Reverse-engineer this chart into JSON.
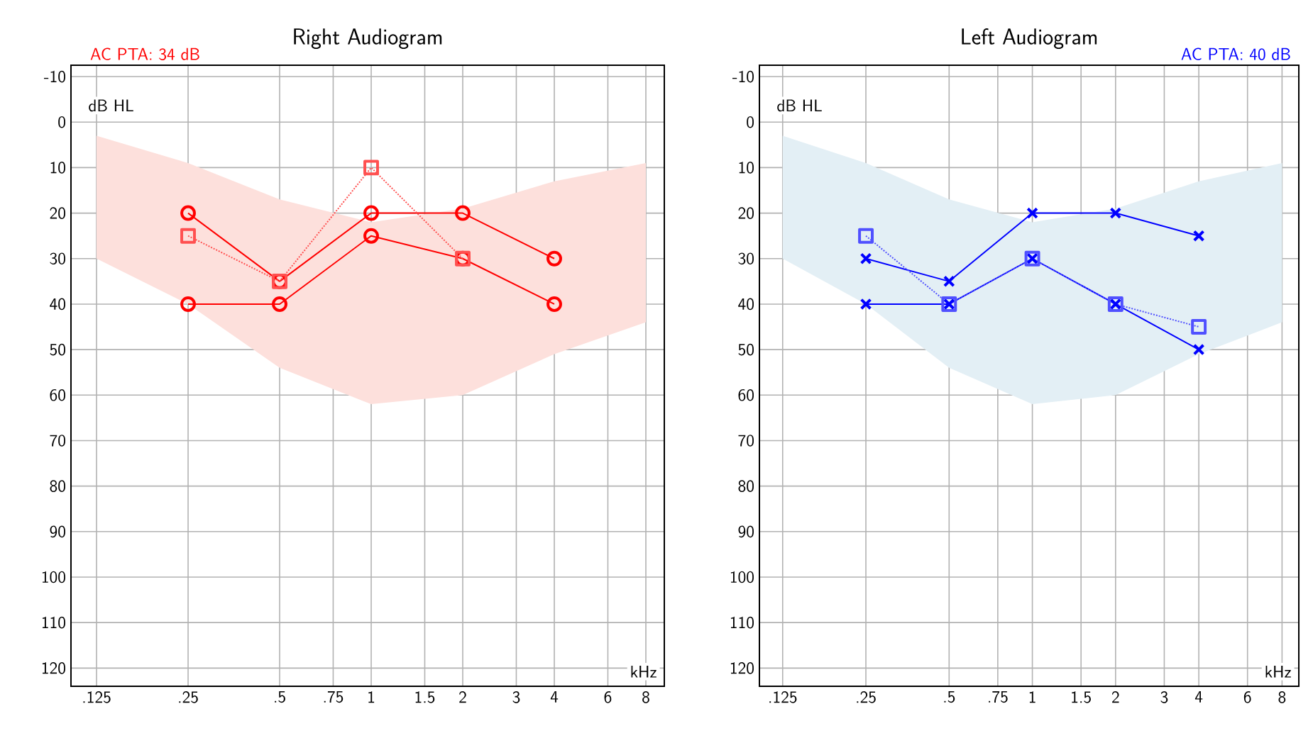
{
  "chart_data": [
    {
      "type": "line",
      "title": "Right Audiogram",
      "xlabel": "kHz",
      "ylabel": "dB HL",
      "annotations": [
        "AC PTA: 34 dB"
      ],
      "log": "x",
      "grid": true,
      "xlim": [
        0.103,
        9.2
      ],
      "ylim": [
        124,
        -12.5
      ],
      "xticks": [
        {
          "value": 0.125,
          "label": ".125"
        },
        {
          "value": 0.25,
          "label": ".25"
        },
        {
          "value": 0.5,
          "label": ".5"
        },
        {
          "value": 0.75,
          "label": ".75"
        },
        1,
        1.5,
        2,
        3,
        4,
        6,
        8
      ],
      "yticks": [
        -10,
        0,
        10,
        20,
        30,
        40,
        50,
        60,
        70,
        80,
        90,
        100,
        110,
        120
      ],
      "series": [
        {
          "type": "area",
          "color": "#fde0dc",
          "x": [
            0.125,
            0.25,
            0.5,
            1,
            2,
            4,
            8
          ],
          "values": [
            null,
            null,
            null,
            null,
            null,
            null,
            null
          ],
          "lower": [
            30,
            40,
            54,
            62,
            60,
            51,
            44
          ],
          "upper": [
            3,
            9,
            17,
            22,
            19,
            13,
            9
          ]
        },
        {
          "color": "#ff0000",
          "marker": "circle",
          "line_style": "solid",
          "x": [
            0.25,
            0.5,
            1,
            2,
            4
          ],
          "values": [
            20,
            35,
            20,
            20,
            30
          ]
        },
        {
          "color": "#ff0000",
          "marker": "circle",
          "line_style": "solid",
          "x": [
            0.25,
            0.5,
            1,
            2,
            4
          ],
          "values": [
            40,
            40,
            25,
            30,
            40
          ]
        },
        {
          "color": "#ff5050",
          "marker": "square",
          "line_style": "dotted",
          "x": [
            0.25,
            0.5,
            1,
            2
          ],
          "values": [
            25,
            35,
            10,
            30
          ]
        }
      ]
    },
    {
      "type": "line",
      "title": "Left Audiogram",
      "xlabel": "kHz",
      "ylabel": "dB HL",
      "annotations": [
        "AC PTA: 40 dB"
      ],
      "log": "x",
      "grid": true,
      "xlim": [
        0.103,
        9.2
      ],
      "ylim": [
        124,
        -12.5
      ],
      "xticks": [
        {
          "value": 0.125,
          "label": ".125"
        },
        {
          "value": 0.25,
          "label": ".25"
        },
        {
          "value": 0.5,
          "label": ".5"
        },
        {
          "value": 0.75,
          "label": ".75"
        },
        1,
        1.5,
        2,
        3,
        4,
        6,
        8
      ],
      "yticks": [
        -10,
        0,
        10,
        20,
        30,
        40,
        50,
        60,
        70,
        80,
        90,
        100,
        110,
        120
      ],
      "series": [
        {
          "type": "area",
          "color": "#e3eff5",
          "x": [
            0.125,
            0.25,
            0.5,
            1,
            2,
            4,
            8
          ],
          "values": [
            null,
            null,
            null,
            null,
            null,
            null,
            null
          ],
          "lower": [
            30,
            40,
            54,
            62,
            60,
            51,
            44
          ],
          "upper": [
            3,
            9,
            17,
            22,
            19,
            13,
            9
          ]
        },
        {
          "color": "#0000ff",
          "marker": "cross",
          "line_style": "solid",
          "x": [
            0.25,
            0.5,
            1,
            2,
            4
          ],
          "values": [
            30,
            35,
            20,
            20,
            25
          ]
        },
        {
          "color": "#0000ff",
          "marker": "cross",
          "line_style": "solid",
          "x": [
            0.25,
            0.5,
            1,
            2,
            4
          ],
          "values": [
            40,
            40,
            30,
            40,
            50
          ]
        },
        {
          "color": "#5050ff",
          "marker": "square",
          "line_style": "dotted",
          "x": [
            0.25,
            0.5,
            1,
            2,
            4
          ],
          "values": [
            25,
            40,
            30,
            40,
            45
          ]
        }
      ]
    }
  ]
}
